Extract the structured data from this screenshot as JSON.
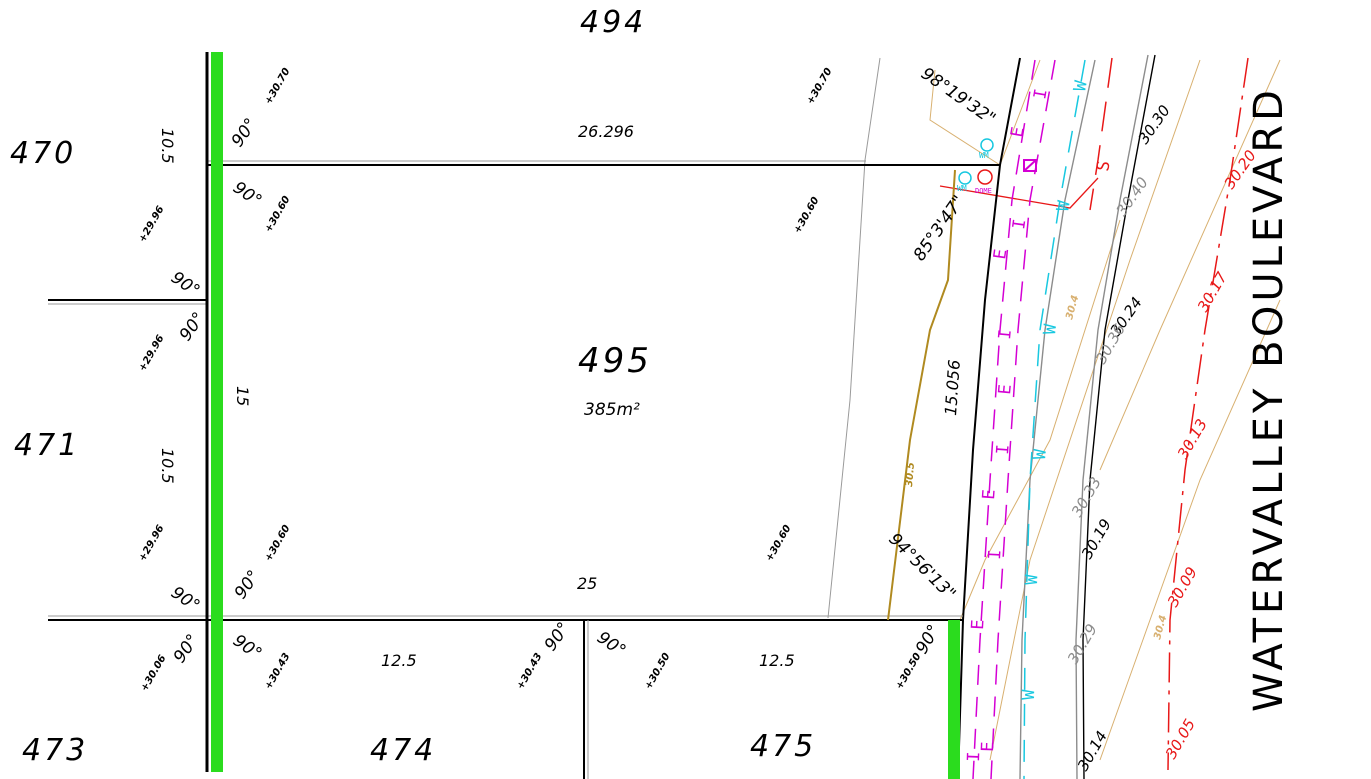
{
  "lots": {
    "lot_494": "494",
    "lot_470": "470",
    "lot_471": "471",
    "lot_473": "473",
    "lot_474": "474",
    "lot_475": "475",
    "lot_495": "495",
    "lot_495_area": "385m²"
  },
  "road_name": "WATERVALLEY BOULEVARD",
  "dimensions": {
    "lot495_top": "26.296",
    "lot495_bottom": "25",
    "lot495_left": "15",
    "lot495_right": "15.056",
    "lot470_side": "10.5",
    "lot471_side": "10.5",
    "lot474_front": "12.5",
    "lot475_front": "12.5"
  },
  "angles": {
    "right_angle": "90°",
    "top_right": "98°19'32\"",
    "mid_right": "85°3'47\"",
    "bottom_right": "94°56'13\""
  },
  "spot_levels": {
    "a": "+30.70",
    "b": "+30.70",
    "c": "+30.60",
    "d": "+30.60",
    "e": "+30.60",
    "f": "+30.60",
    "g": "+29.96",
    "h": "+29.96",
    "i": "+29.96",
    "j": "+30.06",
    "k": "+30.43",
    "l": "+30.43",
    "m": "+30.50",
    "n": "+30.50"
  },
  "contour_labels": {
    "black": [
      "30.30",
      "30.24",
      "30.19",
      "30.14"
    ],
    "grey": [
      "30.40",
      "30.36",
      "30.33",
      "30.29"
    ],
    "red": [
      "30.20",
      "30.17",
      "30.13",
      "30.09",
      "30.05"
    ],
    "brown": [
      "30.5",
      "30.4",
      "30.4"
    ]
  },
  "service_labels": {
    "electric": "E",
    "comms": "I",
    "water": "W",
    "sewer": "S",
    "water_meter": "WM",
    "dome": "DOME"
  },
  "colors": {
    "boundary": "#000000",
    "easement": "#2bdc1e",
    "electric": "#d400d4",
    "water": "#18c8e0",
    "sewer": "#e81818",
    "contour_brown": "#d8b070",
    "contour_grey": "#8c8c8c"
  }
}
